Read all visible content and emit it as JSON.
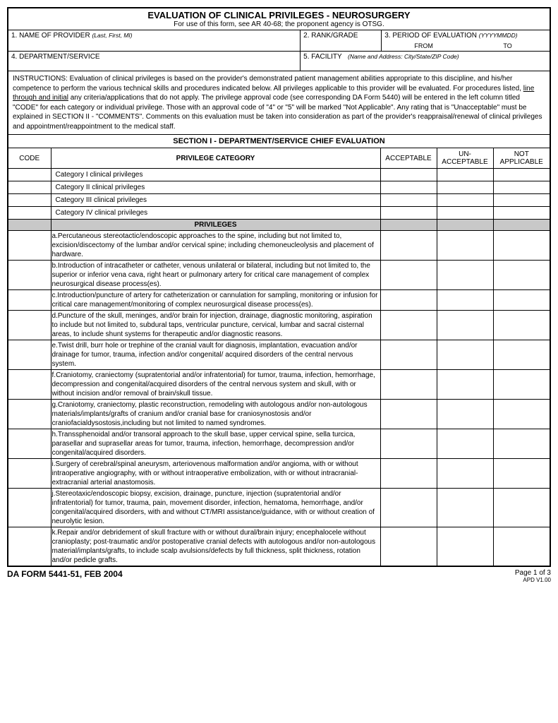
{
  "title": "EVALUATION OF CLINICAL PRIVILEGES - NEUROSURGERY",
  "subtitle": "For use of this form, see AR 40-68; the proponent agency is OTSG.",
  "fields": {
    "f1": "1.  NAME OF PROVIDER",
    "f1_hint": "(Last, First, MI)",
    "f2": "2.  RANK/GRADE",
    "f3": "3.  PERIOD OF EVALUATION",
    "f3_hint": "(YYYYMMDD)",
    "f3_from": "FROM",
    "f3_to": "TO",
    "f4": "4.  DEPARTMENT/SERVICE",
    "f5": "5.  FACILITY",
    "f5_hint": "(Name and Address:   City/State/ZIP Code)"
  },
  "instructions_label": "INSTRUCTIONS:",
  "instructions_pre": "Evaluation of clinical privileges is based on the provider's demonstrated patient management abilities appropriate to this discipline, and his/her competence to perform the various technical skills and procedures indicated below.  All privileges applicable to this provider will be evaluated.  For procedures listed, ",
  "instructions_underline": "line through and initial",
  "instructions_post": " any criteria/applications that do not apply.  The privilege approval code (see corresponding DA Form 5440) will be entered in the left column titled \"CODE\" for each category or individual privilege.  Those with an approval code of \"4\" or \"5\" will be marked \"Not Applicable\".  Any rating that is \"Unacceptable\" must be explained in SECTION II - \"COMMENTS\".  Comments on this evaluation must be taken into consideration as part of the provider's reappraisal/renewal of clinical privileges and appointment/reappointment to the medical staff.",
  "section1": "SECTION I - DEPARTMENT/SERVICE CHIEF EVALUATION",
  "headers": {
    "code": "CODE",
    "privcat": "PRIVILEGE CATEGORY",
    "acc": "ACCEPTABLE",
    "unacc_top": "UN-",
    "unacc_bot": "ACCEPTABLE",
    "na_top": "NOT",
    "na_bot": "APPLICABLE"
  },
  "categories": [
    "Category I clinical privileges",
    "Category II clinical privileges",
    "Category III clinical privileges",
    "Category IV clinical privileges"
  ],
  "privileges_header": "PRIVILEGES",
  "privileges": [
    {
      "l": "a.",
      "t": "Percutaneous stereotactic/endoscopic approaches to the spine, including but not limited to, excision/discectomy of the lumbar and/or cervical spine; including chemoneucleolysis and placement of hardware."
    },
    {
      "l": "b.",
      "t": "Introduction of intracatheter or catheter, venous unilateral or bilateral, including but not limited to, the superior or inferior vena cava, right heart or pulmonary artery for critical care management of complex neurosurgical disease process(es)."
    },
    {
      "l": "c.",
      "t": "Introduction/puncture of artery for catheterization or cannulation for sampling, monitoring or infusion for critical care management/monitoring of complex neurosurgical disease process(es)."
    },
    {
      "l": "d.",
      "t": "Puncture of the skull, meninges, and/or brain for injection, drainage, diagnostic monitoring, aspiration to include but not limited to, subdural taps, ventricular puncture, cervical, lumbar and sacral cisternal areas, to include shunt systems for therapeutic and/or diagnostic reasons."
    },
    {
      "l": "e.",
      "t": "Twist drill, burr hole or trephine of the cranial vault for diagnosis, implantation, evacuation and/or drainage for tumor, trauma, infection and/or congenital/ acquired disorders of the central nervous system."
    },
    {
      "l": "f.",
      "t": "Craniotomy, craniectomy (supratentorial and/or infratentorial) for tumor, trauma, infection, hemorrhage, decompression and congenital/acquired disorders of the central nervous system and skull, with or without incision and/or removal of brain/skull tissue."
    },
    {
      "l": "g.",
      "t": "Craniotomy, craniectomy, plastic reconstruction, remodeling with autologous and/or non-autologous materials/implants/grafts of cranium and/or cranial base for craniosynostosis and/or craniofacialdysostosis,including but not limited to named syndromes."
    },
    {
      "l": "h.",
      "t": "Transsphenoidal and/or transoral approach to the skull base, upper cervical spine, sella turcica, parasellar and suprasellar areas for tumor, trauma, infection, hemorrhage, decompression and/or congenital/acquired disorders."
    },
    {
      "l": "i.",
      "t": "Surgery of cerebral/spinal aneurysm, arteriovenous malformation and/or angioma, with or without intraoperative angiography, with or without intraoperative embolization, with or without intracranial-extracranial arterial anastomosis."
    },
    {
      "l": "j.",
      "t": "Stereotaxic/endoscopic biopsy, excision, drainage, puncture, injection (supratentorial and/or infratentorial) for tumor, trauma, pain, movement disorder, infection, hematoma, hemorrhage, and/or congenital/acquired disorders, with and without CT/MRI assistance/guidance, with or without creation of neurolytic lesion."
    },
    {
      "l": "k.",
      "t": "Repair and/or debridement of skull fracture with or without dural/brain injury; encephalocele without cranioplasty; post-traumatic and/or postoperative cranial defects with autologous and/or non-autologous material/implants/grafts, to include scalp avulsions/defects by full thickness, split thickness, rotation and/or pedicle grafts."
    }
  ],
  "footer": {
    "left": "DA FORM 5441-51, FEB 2004",
    "right_page": "Page 1 of 3",
    "right_apd": "APD V1.00"
  }
}
